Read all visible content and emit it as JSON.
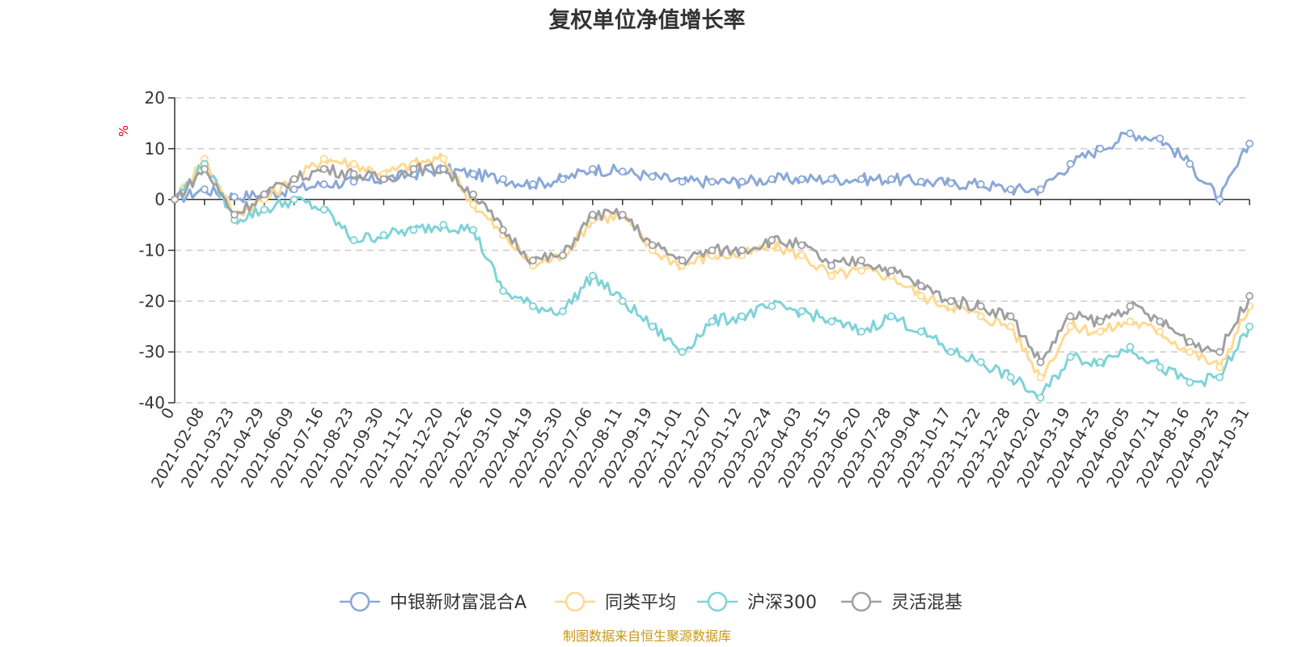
{
  "chart_data": {
    "type": "line",
    "title": "复权单位净值增长率",
    "ylabel": "%",
    "ylim": [
      -40,
      20
    ],
    "yticks": [
      20,
      10,
      0,
      -10,
      -20,
      -30,
      -40
    ],
    "grid": true,
    "legend_position": "bottom",
    "x_labels": [
      "0",
      "2021-02-08",
      "2021-03-23",
      "2021-04-29",
      "2021-06-09",
      "2021-07-16",
      "2021-08-23",
      "2021-09-30",
      "2021-11-12",
      "2021-12-20",
      "2022-01-26",
      "2022-03-10",
      "2022-04-19",
      "2022-05-30",
      "2022-07-06",
      "2022-08-11",
      "2022-09-19",
      "2022-11-01",
      "2022-12-07",
      "2023-01-12",
      "2023-02-24",
      "2023-04-03",
      "2023-05-15",
      "2023-06-20",
      "2023-07-28",
      "2023-09-04",
      "2023-10-17",
      "2023-11-22",
      "2023-12-28",
      "2024-02-02",
      "2024-03-19",
      "2024-04-25",
      "2024-06-05",
      "2024-07-11",
      "2024-08-16",
      "2024-09-25",
      "2024-10-31"
    ],
    "series": [
      {
        "name": "中银新财富混合A",
        "color": "#8aa8d8",
        "values": [
          0,
          2,
          0.5,
          1,
          2,
          3,
          3.5,
          4,
          5,
          6,
          5,
          4,
          3,
          4,
          6,
          5.5,
          4.5,
          3.5,
          3.5,
          3.5,
          4,
          4,
          4,
          4,
          4,
          3.5,
          3.2,
          3,
          2,
          2,
          7,
          10,
          13,
          12,
          7,
          0,
          11
        ]
      },
      {
        "name": "同类平均",
        "color": "#ffd98f",
        "values": [
          0,
          8,
          -3,
          0,
          4,
          8,
          7,
          5,
          7,
          8,
          -1,
          -7,
          -13,
          -11,
          -4,
          -3,
          -10,
          -13,
          -11,
          -11,
          -9,
          -11,
          -15,
          -14,
          -15,
          -19,
          -21,
          -23,
          -25,
          -35,
          -25,
          -26,
          -24,
          -26,
          -30,
          -33,
          -21
        ]
      },
      {
        "name": "沪深300",
        "color": "#7ed3d8",
        "values": [
          0,
          7,
          -4,
          -2,
          0,
          -2,
          -8,
          -7,
          -6,
          -5,
          -6,
          -18,
          -21,
          -22,
          -15,
          -20,
          -25,
          -30,
          -24,
          -23,
          -21,
          -22,
          -24,
          -26,
          -23,
          -26,
          -30,
          -32,
          -35,
          -39,
          -31,
          -32,
          -29,
          -33,
          -36,
          -35,
          -25
        ]
      },
      {
        "name": "灵活混基",
        "color": "#a0a0a0",
        "values": [
          0,
          6,
          -3,
          1,
          4,
          6,
          5,
          4,
          6,
          6,
          1,
          -6,
          -12,
          -11,
          -3,
          -3,
          -9,
          -12,
          -10,
          -10,
          -8,
          -9,
          -13,
          -12,
          -14,
          -17,
          -20,
          -21,
          -23,
          -32,
          -23,
          -24,
          -21,
          -24,
          -28,
          -30,
          -19
        ]
      }
    ]
  },
  "source": "制图数据来自恒生聚源数据库"
}
